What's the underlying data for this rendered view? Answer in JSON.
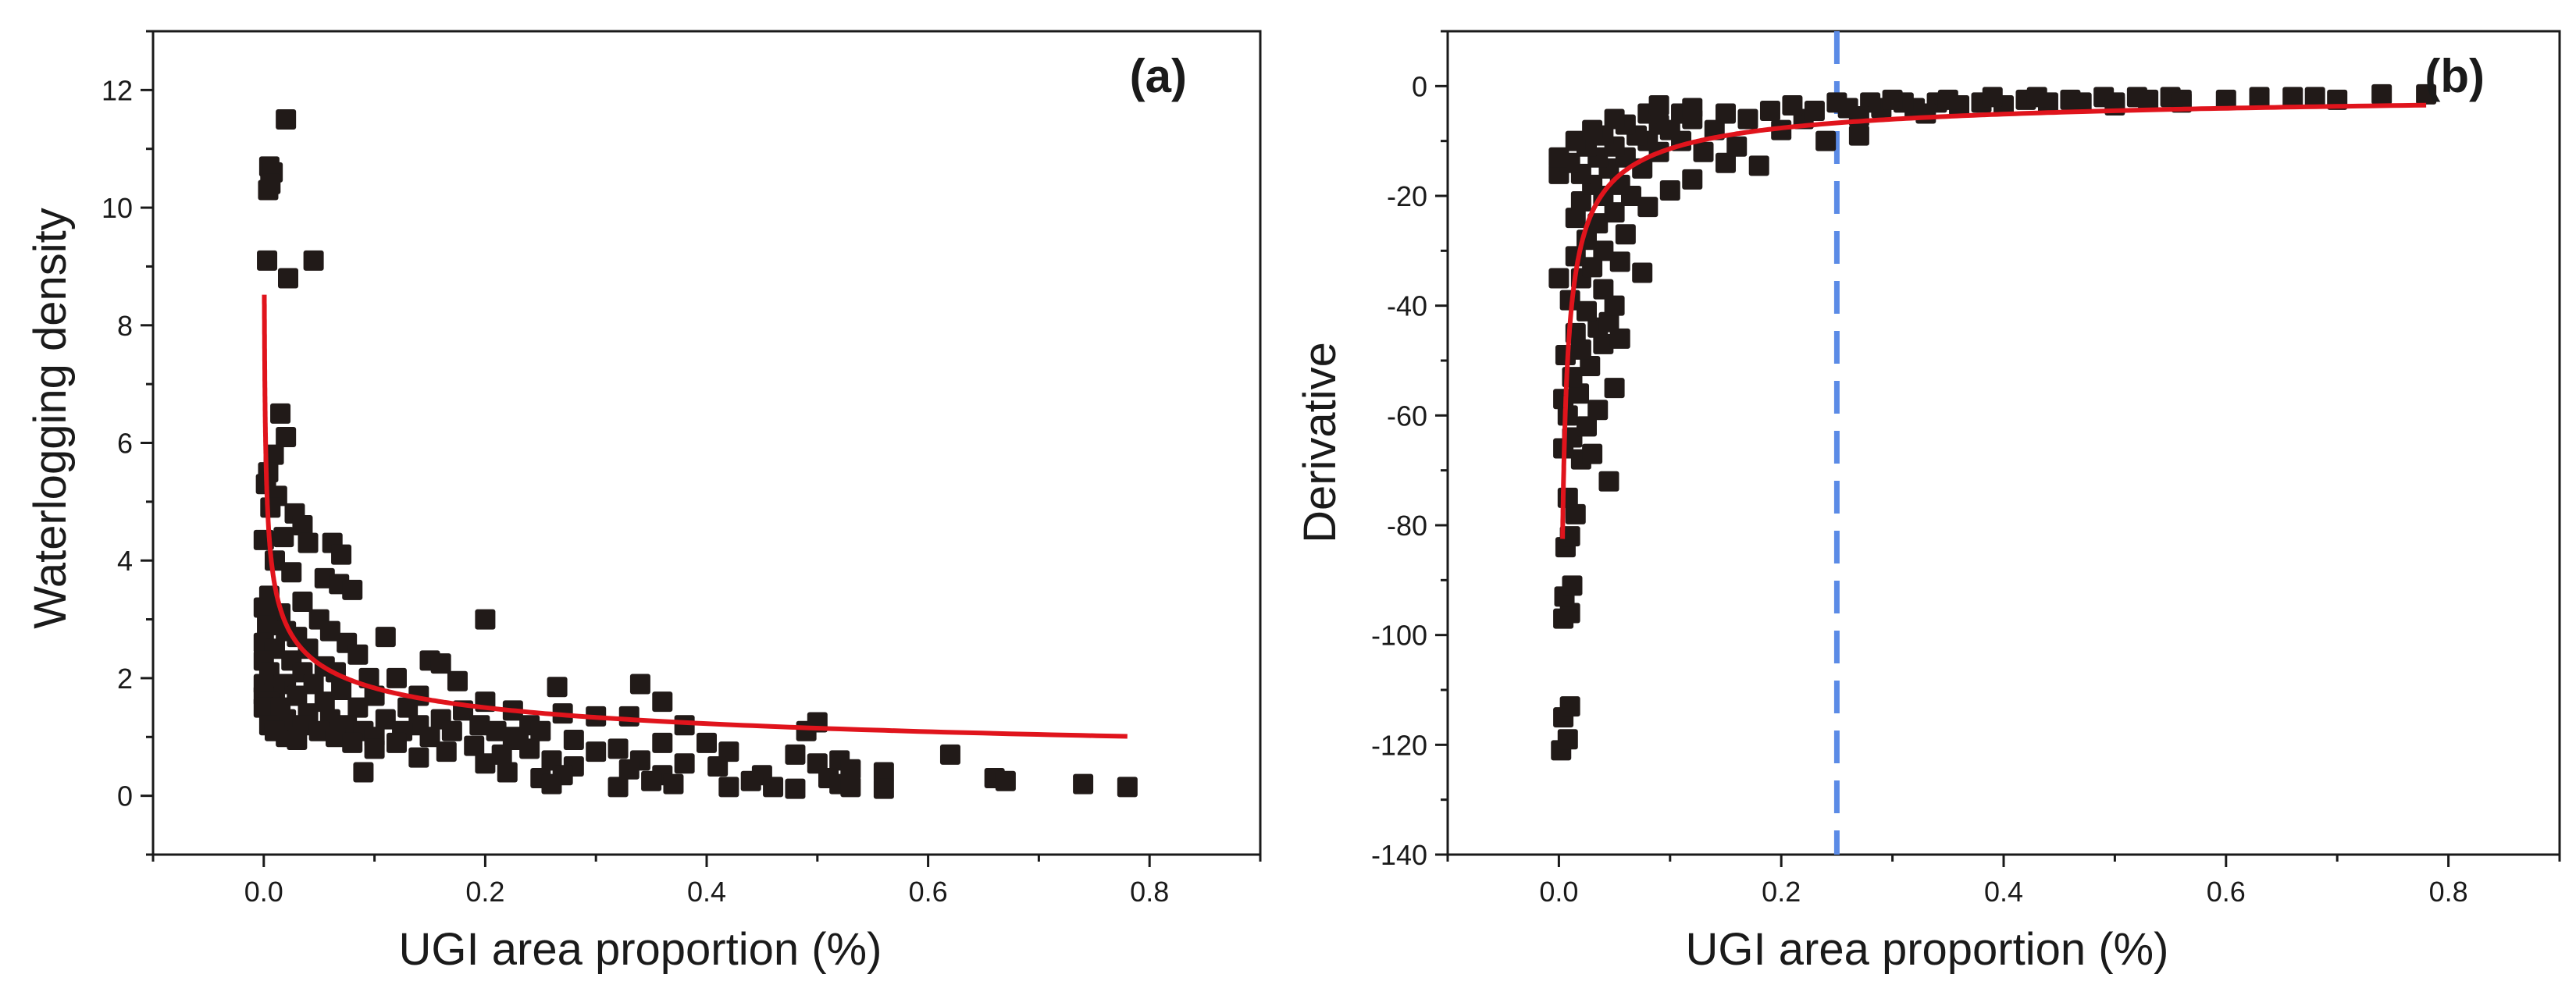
{
  "colors": {
    "points": "#211a18",
    "fit_line": "#e0141c",
    "threshold_line": "#5b8be6",
    "axes": "#1a1a1a"
  },
  "chart_data": [
    {
      "id": "a",
      "type": "scatter",
      "panel_label": "(a)",
      "xlabel": "UGI area proportion (%)",
      "ylabel": "Waterlogging density",
      "xlim": [
        -0.1,
        0.9
      ],
      "ylim": [
        -1,
        13
      ],
      "x_ticks": [
        0.0,
        0.2,
        0.4,
        0.6,
        0.8
      ],
      "x_tick_labels": [
        "0.0",
        "0.2",
        "0.4",
        "0.6",
        "0.8"
      ],
      "y_ticks": [
        0,
        2,
        4,
        6,
        8,
        10,
        12
      ],
      "y_tick_labels": [
        "0",
        "2",
        "4",
        "6",
        "8",
        "10",
        "12"
      ],
      "points": [
        [
          0.02,
          11.5
        ],
        [
          0.005,
          10.7
        ],
        [
          0.008,
          10.6
        ],
        [
          0.006,
          10.4
        ],
        [
          0.004,
          10.3
        ],
        [
          0.003,
          9.1
        ],
        [
          0.045,
          9.1
        ],
        [
          0.022,
          8.8
        ],
        [
          0.015,
          6.5
        ],
        [
          0.02,
          6.1
        ],
        [
          0.009,
          5.8
        ],
        [
          0.004,
          5.5
        ],
        [
          0.002,
          5.3
        ],
        [
          0.012,
          5.1
        ],
        [
          0.006,
          4.9
        ],
        [
          0.028,
          4.8
        ],
        [
          0.035,
          4.6
        ],
        [
          0.0,
          4.35
        ],
        [
          0.018,
          4.4
        ],
        [
          0.04,
          4.3
        ],
        [
          0.062,
          4.3
        ],
        [
          0.07,
          4.1
        ],
        [
          0.01,
          4.0
        ],
        [
          0.025,
          3.8
        ],
        [
          0.055,
          3.7
        ],
        [
          0.068,
          3.6
        ],
        [
          0.08,
          3.5
        ],
        [
          0.005,
          3.4
        ],
        [
          0.035,
          3.3
        ],
        [
          0.0,
          3.2
        ],
        [
          0.015,
          3.1
        ],
        [
          0.05,
          3.0
        ],
        [
          0.003,
          2.9
        ],
        [
          0.02,
          2.8
        ],
        [
          0.06,
          2.8
        ],
        [
          0.11,
          2.7
        ],
        [
          0.03,
          2.7
        ],
        [
          0.0,
          2.6
        ],
        [
          0.075,
          2.6
        ],
        [
          0.01,
          2.5
        ],
        [
          0.04,
          2.5
        ],
        [
          0.085,
          2.4
        ],
        [
          0.0,
          2.3
        ],
        [
          0.025,
          2.3
        ],
        [
          0.055,
          2.2
        ],
        [
          0.15,
          2.3
        ],
        [
          0.005,
          2.1
        ],
        [
          0.035,
          2.1
        ],
        [
          0.065,
          2.1
        ],
        [
          0.095,
          2.0
        ],
        [
          0.0,
          1.9
        ],
        [
          0.02,
          1.9
        ],
        [
          0.045,
          1.9
        ],
        [
          0.12,
          2.0
        ],
        [
          0.175,
          1.95
        ],
        [
          0.01,
          1.8
        ],
        [
          0.07,
          1.8
        ],
        [
          0.0,
          1.7
        ],
        [
          0.03,
          1.7
        ],
        [
          0.1,
          1.7
        ],
        [
          0.14,
          1.7
        ],
        [
          0.005,
          1.6
        ],
        [
          0.055,
          1.6
        ],
        [
          0.2,
          1.6
        ],
        [
          0.0,
          1.5
        ],
        [
          0.015,
          1.5
        ],
        [
          0.085,
          1.5
        ],
        [
          0.13,
          1.5
        ],
        [
          0.04,
          1.4
        ],
        [
          0.18,
          1.45
        ],
        [
          0.225,
          1.45
        ],
        [
          0.02,
          1.3
        ],
        [
          0.06,
          1.3
        ],
        [
          0.11,
          1.3
        ],
        [
          0.16,
          1.3
        ],
        [
          0.27,
          1.4
        ],
        [
          0.3,
          1.35
        ],
        [
          0.005,
          1.2
        ],
        [
          0.035,
          1.2
        ],
        [
          0.075,
          1.2
        ],
        [
          0.14,
          1.2
        ],
        [
          0.195,
          1.2
        ],
        [
          0.24,
          1.2
        ],
        [
          0.33,
          1.35
        ],
        [
          0.01,
          1.1
        ],
        [
          0.05,
          1.1
        ],
        [
          0.09,
          1.1
        ],
        [
          0.125,
          1.1
        ],
        [
          0.17,
          1.1
        ],
        [
          0.21,
          1.1
        ],
        [
          0.25,
          1.1
        ],
        [
          0.38,
          1.2
        ],
        [
          0.02,
          1.0
        ],
        [
          0.065,
          1.0
        ],
        [
          0.1,
          1.0
        ],
        [
          0.15,
          1.0
        ],
        [
          0.225,
          1.0
        ],
        [
          0.28,
          0.95
        ],
        [
          0.36,
          0.9
        ],
        [
          0.03,
          0.95
        ],
        [
          0.08,
          0.9
        ],
        [
          0.12,
          0.9
        ],
        [
          0.19,
          0.85
        ],
        [
          0.24,
          0.8
        ],
        [
          0.32,
          0.8
        ],
        [
          0.4,
          0.9
        ],
        [
          0.49,
          1.1
        ],
        [
          0.5,
          1.25
        ],
        [
          0.1,
          0.8
        ],
        [
          0.165,
          0.75
        ],
        [
          0.215,
          0.7
        ],
        [
          0.3,
          0.75
        ],
        [
          0.42,
          0.75
        ],
        [
          0.48,
          0.7
        ],
        [
          0.14,
          0.65
        ],
        [
          0.26,
          0.6
        ],
        [
          0.34,
          0.6
        ],
        [
          0.38,
          0.55
        ],
        [
          0.5,
          0.55
        ],
        [
          0.52,
          0.6
        ],
        [
          0.2,
          0.55
        ],
        [
          0.28,
          0.5
        ],
        [
          0.33,
          0.45
        ],
        [
          0.41,
          0.5
        ],
        [
          0.53,
          0.45
        ],
        [
          0.62,
          0.7
        ],
        [
          0.09,
          0.4
        ],
        [
          0.22,
          0.4
        ],
        [
          0.27,
          0.35
        ],
        [
          0.36,
          0.35
        ],
        [
          0.45,
          0.35
        ],
        [
          0.51,
          0.3
        ],
        [
          0.56,
          0.4
        ],
        [
          0.25,
          0.3
        ],
        [
          0.35,
          0.25
        ],
        [
          0.44,
          0.25
        ],
        [
          0.52,
          0.2
        ],
        [
          0.66,
          0.3
        ],
        [
          0.67,
          0.25
        ],
        [
          0.26,
          0.2
        ],
        [
          0.32,
          0.15
        ],
        [
          0.37,
          0.2
        ],
        [
          0.42,
          0.15
        ],
        [
          0.46,
          0.15
        ],
        [
          0.48,
          0.12
        ],
        [
          0.53,
          0.15
        ],
        [
          0.56,
          0.12
        ],
        [
          0.74,
          0.2
        ],
        [
          0.78,
          0.15
        ],
        [
          0.2,
          3.0
        ],
        [
          0.265,
          1.85
        ],
        [
          0.34,
          1.9
        ],
        [
          0.36,
          1.6
        ],
        [
          0.16,
          2.25
        ],
        [
          0.23,
          0.95
        ]
      ],
      "fit_model": "y = 0.94 * x^(-0.29)",
      "fit": {
        "a": 0.94,
        "b": -0.29,
        "x_range": [
          0.0005,
          0.78
        ]
      }
    },
    {
      "id": "b",
      "type": "scatter",
      "panel_label": "(b)",
      "xlabel": "UGI area proportion (%)",
      "ylabel": "Derivative",
      "xlim": [
        -0.1,
        0.9
      ],
      "ylim": [
        -140,
        10
      ],
      "x_ticks": [
        0.0,
        0.2,
        0.4,
        0.6,
        0.8
      ],
      "x_tick_labels": [
        "0.0",
        "0.2",
        "0.4",
        "0.6",
        "0.8"
      ],
      "y_ticks": [
        -140,
        -120,
        -100,
        -80,
        -60,
        -40,
        -20,
        0
      ],
      "y_tick_labels": [
        "-140",
        "-120",
        "-100",
        "-80",
        "-60",
        "-40",
        "-20",
        "0"
      ],
      "threshold_x": 0.25,
      "points": [
        [
          0.002,
          -121
        ],
        [
          0.008,
          -119
        ],
        [
          0.004,
          -115
        ],
        [
          0.01,
          -113
        ],
        [
          0.004,
          -97
        ],
        [
          0.01,
          -96
        ],
        [
          0.005,
          -93
        ],
        [
          0.012,
          -91
        ],
        [
          0.006,
          -84
        ],
        [
          0.01,
          -82
        ],
        [
          0.015,
          -78
        ],
        [
          0.008,
          -75
        ],
        [
          0.045,
          -72
        ],
        [
          0.02,
          -68
        ],
        [
          0.03,
          -67
        ],
        [
          0.004,
          -66
        ],
        [
          0.012,
          -64
        ],
        [
          0.025,
          -62
        ],
        [
          0.008,
          -60
        ],
        [
          0.035,
          -59
        ],
        [
          0.004,
          -57
        ],
        [
          0.018,
          -56
        ],
        [
          0.05,
          -55
        ],
        [
          0.012,
          -53
        ],
        [
          0.028,
          -51
        ],
        [
          0.006,
          -49
        ],
        [
          0.02,
          -48
        ],
        [
          0.04,
          -47
        ],
        [
          0.055,
          -46
        ],
        [
          0.015,
          -45
        ],
        [
          0.035,
          -44
        ],
        [
          0.045,
          -43
        ],
        [
          0.025,
          -41
        ],
        [
          0.05,
          -40
        ],
        [
          0.01,
          -39
        ],
        [
          0.04,
          -37
        ],
        [
          0.02,
          -35
        ],
        [
          0.0,
          -35
        ],
        [
          0.075,
          -34
        ],
        [
          0.03,
          -33
        ],
        [
          0.055,
          -32
        ],
        [
          0.015,
          -31
        ],
        [
          0.04,
          -30
        ],
        [
          0.025,
          -28
        ],
        [
          0.06,
          -27
        ],
        [
          0.035,
          -25
        ],
        [
          0.015,
          -24
        ],
        [
          0.05,
          -23
        ],
        [
          0.08,
          -22
        ],
        [
          0.02,
          -21
        ],
        [
          0.04,
          -20
        ],
        [
          0.065,
          -20
        ],
        [
          0.1,
          -19
        ],
        [
          0.03,
          -18
        ],
        [
          0.055,
          -18
        ],
        [
          0.12,
          -17
        ],
        [
          0.0,
          -16
        ],
        [
          0.02,
          -16
        ],
        [
          0.045,
          -15
        ],
        [
          0.075,
          -15
        ],
        [
          0.15,
          -14
        ],
        [
          0.18,
          -14.5
        ],
        [
          0.01,
          -14
        ],
        [
          0.035,
          -13
        ],
        [
          0.06,
          -13
        ],
        [
          0.09,
          -12
        ],
        [
          0.13,
          -12
        ],
        [
          0.0,
          -13
        ],
        [
          0.025,
          -11
        ],
        [
          0.05,
          -11
        ],
        [
          0.08,
          -10
        ],
        [
          0.11,
          -10
        ],
        [
          0.16,
          -11
        ],
        [
          0.015,
          -10
        ],
        [
          0.04,
          -9
        ],
        [
          0.07,
          -9
        ],
        [
          0.1,
          -8
        ],
        [
          0.14,
          -8
        ],
        [
          0.2,
          -8
        ],
        [
          0.24,
          -10
        ],
        [
          0.27,
          -9
        ],
        [
          0.03,
          -8
        ],
        [
          0.06,
          -7
        ],
        [
          0.09,
          -7
        ],
        [
          0.12,
          -6
        ],
        [
          0.17,
          -6
        ],
        [
          0.22,
          -6
        ],
        [
          0.05,
          -6
        ],
        [
          0.08,
          -5
        ],
        [
          0.11,
          -5
        ],
        [
          0.15,
          -5
        ],
        [
          0.19,
          -4.5
        ],
        [
          0.23,
          -4.5
        ],
        [
          0.26,
          -4
        ],
        [
          0.29,
          -4
        ],
        [
          0.32,
          -4
        ],
        [
          0.36,
          -3.5
        ],
        [
          0.4,
          -3.5
        ],
        [
          0.44,
          -3
        ],
        [
          0.47,
          -3
        ],
        [
          0.5,
          -3
        ],
        [
          0.53,
          -2.5
        ],
        [
          0.56,
          -2.5
        ],
        [
          0.21,
          -3.5
        ],
        [
          0.25,
          -3
        ],
        [
          0.28,
          -3
        ],
        [
          0.31,
          -3
        ],
        [
          0.34,
          -3
        ],
        [
          0.38,
          -3
        ],
        [
          0.42,
          -2.5
        ],
        [
          0.46,
          -2.5
        ],
        [
          0.49,
          -2
        ],
        [
          0.52,
          -2
        ],
        [
          0.55,
          -2
        ],
        [
          0.6,
          -2.5
        ],
        [
          0.63,
          -2
        ],
        [
          0.66,
          -2
        ],
        [
          0.68,
          -2
        ],
        [
          0.7,
          -2.5
        ],
        [
          0.74,
          -1.5
        ],
        [
          0.78,
          -1.5
        ],
        [
          0.3,
          -2.5
        ],
        [
          0.35,
          -2.5
        ],
        [
          0.39,
          -2
        ],
        [
          0.43,
          -2
        ],
        [
          0.5,
          -3.5
        ],
        [
          0.56,
          -3
        ],
        [
          0.33,
          -5
        ],
        [
          0.27,
          -5.5
        ],
        [
          0.12,
          -4
        ],
        [
          0.09,
          -3.5
        ]
      ],
      "fit_model": "y = -3.0 * x^(-0.58)",
      "fit": {
        "a": -3.0,
        "b": -0.58,
        "x_range": [
          0.0033,
          0.78
        ]
      }
    }
  ]
}
